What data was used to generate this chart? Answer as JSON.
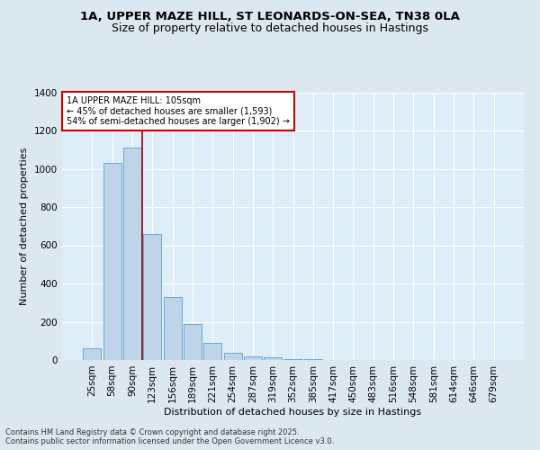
{
  "title_line1": "1A, UPPER MAZE HILL, ST LEONARDS-ON-SEA, TN38 0LA",
  "title_line2": "Size of property relative to detached houses in Hastings",
  "xlabel": "Distribution of detached houses by size in Hastings",
  "ylabel": "Number of detached properties",
  "bar_labels": [
    "25sqm",
    "58sqm",
    "90sqm",
    "123sqm",
    "156sqm",
    "189sqm",
    "221sqm",
    "254sqm",
    "287sqm",
    "319sqm",
    "352sqm",
    "385sqm",
    "417sqm",
    "450sqm",
    "483sqm",
    "516sqm",
    "548sqm",
    "581sqm",
    "614sqm",
    "646sqm",
    "679sqm"
  ],
  "bar_heights": [
    60,
    1030,
    1110,
    660,
    330,
    190,
    90,
    40,
    20,
    15,
    5,
    3,
    2,
    1,
    1,
    1,
    0,
    0,
    0,
    0,
    0
  ],
  "bar_color": "#bfd4e8",
  "bar_edge_color": "#6aaad4",
  "background_color": "#dce8f0",
  "plot_bg_color": "#deeef8",
  "grid_color": "#ffffff",
  "vline_x_index": 2.5,
  "vline_color": "#990000",
  "annotation_text": "1A UPPER MAZE HILL: 105sqm\n← 45% of detached houses are smaller (1,593)\n54% of semi-detached houses are larger (1,902) →",
  "annotation_box_facecolor": "#ffffff",
  "annotation_box_edgecolor": "#cc0000",
  "ylim": [
    0,
    1400
  ],
  "yticks": [
    0,
    200,
    400,
    600,
    800,
    1000,
    1200,
    1400
  ],
  "footer_text": "Contains HM Land Registry data © Crown copyright and database right 2025.\nContains public sector information licensed under the Open Government Licence v3.0.",
  "title_fontsize": 9.5,
  "subtitle_fontsize": 9,
  "axis_label_fontsize": 8,
  "tick_fontsize": 7.5,
  "annotation_fontsize": 7,
  "footer_fontsize": 6
}
